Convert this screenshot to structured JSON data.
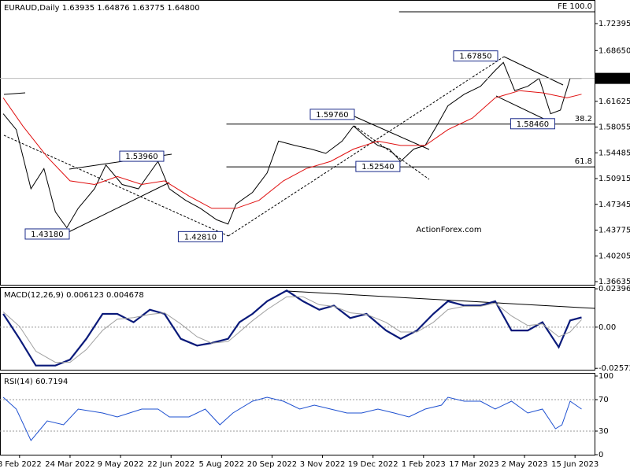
{
  "chart_data": [
    {
      "type": "line",
      "title": "EURAUD,Daily  1.63935 1.64876 1.63775 1.64800",
      "watermark": "ActionForex.com",
      "xlim": [
        0,
        365
      ],
      "ylim": [
        1.362,
        1.7566
      ],
      "grid": false,
      "yticks": [
        1.72395,
        {
          "value": 1.6865,
          "label": "1.68650"
        },
        1.61625,
        1.58055,
        1.54485,
        1.50915,
        1.47345,
        1.43775,
        1.40205,
        1.36635
      ],
      "last_price": {
        "value": 1.648,
        "label": "1.64800"
      },
      "series": [
        {
          "name": "EURAUD",
          "color": "#000000",
          "x": [
            2,
            10,
            19,
            27,
            34,
            41,
            48,
            58,
            65,
            75,
            85,
            97,
            104,
            114,
            123,
            133,
            140,
            145,
            155,
            164,
            171,
            181,
            191,
            200,
            210,
            217,
            225,
            232,
            239,
            246,
            254,
            261,
            268,
            275,
            285,
            295,
            304,
            309,
            316,
            324,
            331,
            338,
            344,
            350,
            357
          ],
          "values": [
            1.599,
            1.577,
            1.495,
            1.523,
            1.463,
            1.441,
            1.468,
            1.495,
            1.528,
            1.501,
            1.495,
            1.533,
            1.495,
            1.479,
            1.468,
            1.452,
            1.446,
            1.474,
            1.49,
            1.517,
            1.561,
            1.555,
            1.55,
            1.544,
            1.561,
            1.582,
            1.566,
            1.555,
            1.55,
            1.533,
            1.55,
            1.555,
            1.582,
            1.61,
            1.626,
            1.637,
            1.659,
            1.67,
            1.631,
            1.637,
            1.648,
            1.599,
            1.604,
            1.648,
            1.648
          ]
        },
        {
          "name": "MA",
          "color": "#e01010",
          "x": [
            2,
            14,
            29,
            43,
            58,
            72,
            87,
            101,
            116,
            130,
            145,
            159,
            174,
            188,
            203,
            217,
            232,
            246,
            261,
            275,
            290,
            304,
            319,
            333,
            348,
            357
          ],
          "values": [
            1.621,
            1.582,
            1.539,
            1.506,
            1.501,
            1.512,
            1.501,
            1.506,
            1.485,
            1.468,
            1.468,
            1.479,
            1.506,
            1.523,
            1.533,
            1.55,
            1.561,
            1.555,
            1.555,
            1.577,
            1.593,
            1.621,
            1.631,
            1.628,
            1.621,
            1.626
          ]
        }
      ],
      "annotations": [
        {
          "label": "1.43180",
          "value": 1.4318,
          "x": 29
        },
        {
          "label": "1.53960",
          "value": 1.5396,
          "x": 87
        },
        {
          "label": "1.42810",
          "value": 1.4281,
          "x": 123
        },
        {
          "label": "1.59760",
          "value": 1.5976,
          "x": 204
        },
        {
          "label": "1.52540",
          "value": 1.5254,
          "x": 232
        },
        {
          "label": "1.67850",
          "value": 1.6785,
          "x": 292
        },
        {
          "label": "1.58460",
          "value": 1.5846,
          "x": 327
        }
      ],
      "levels": [
        {
          "label": "FE 100.0",
          "value": 1.7403,
          "from": 245
        },
        {
          "label": "38.2",
          "value": 1.5846,
          "from": 139
        },
        {
          "label": "61.8",
          "value": 1.5254,
          "from": 139
        }
      ]
    },
    {
      "type": "line",
      "title": "MACD(12,26,9) 0.006123 0.004678",
      "xlim": [
        0,
        365
      ],
      "ylim": [
        -0.0266,
        0.025
      ],
      "grid": true,
      "yticks": [
        0.023963,
        {
          "value": 0,
          "label": "0.00"
        },
        -0.025726
      ],
      "series": [
        {
          "name": "MACD",
          "color": "#0a1a7a",
          "x": [
            2,
            12,
            22,
            34,
            43,
            53,
            63,
            72,
            82,
            92,
            101,
            111,
            121,
            130,
            140,
            147,
            155,
            164,
            176,
            186,
            196,
            205,
            215,
            225,
            237,
            246,
            256,
            266,
            275,
            285,
            295,
            304,
            314,
            324,
            333,
            343,
            350,
            357
          ],
          "values": [
            0.0083,
            -0.0073,
            -0.024,
            -0.024,
            -0.0203,
            -0.0073,
            0.0083,
            0.0083,
            0.0031,
            0.0109,
            0.0083,
            -0.0073,
            -0.0115,
            -0.0099,
            -0.0073,
            0.0031,
            0.0083,
            0.0162,
            0.0229,
            0.0162,
            0.0109,
            0.0135,
            0.0057,
            0.0083,
            -0.0021,
            -0.0073,
            -0.0021,
            0.0083,
            0.0162,
            0.0135,
            0.0135,
            0.0162,
            -0.0021,
            -0.0021,
            0.0031,
            -0.0125,
            0.0042,
            0.0061
          ]
        },
        {
          "name": "Signal",
          "color": "#a0a0a0",
          "x": [
            2,
            12,
            22,
            34,
            43,
            53,
            63,
            72,
            82,
            92,
            101,
            111,
            121,
            130,
            140,
            147,
            155,
            164,
            176,
            186,
            196,
            205,
            215,
            225,
            237,
            246,
            256,
            266,
            275,
            285,
            295,
            304,
            314,
            324,
            333,
            343,
            350,
            357
          ],
          "values": [
            0.0095,
            0.0005,
            -0.015,
            -0.022,
            -0.022,
            -0.014,
            -0.002,
            0.005,
            0.006,
            0.008,
            0.009,
            0.002,
            -0.006,
            -0.01,
            -0.009,
            -0.003,
            0.004,
            0.011,
            0.019,
            0.019,
            0.014,
            0.013,
            0.009,
            0.008,
            0.003,
            -0.003,
            -0.003,
            0.003,
            0.011,
            0.013,
            0.013,
            0.015,
            0.007,
            0.001,
            0.002,
            -0.006,
            -0.003,
            0.0047
          ]
        }
      ]
    },
    {
      "type": "line",
      "title": "RSI(14) 60.7194",
      "xlim": [
        0,
        365
      ],
      "ylim": [
        0,
        103
      ],
      "grid": true,
      "yticks": [
        100,
        70,
        30,
        0
      ],
      "xticks": [
        {
          "value": 12,
          "label": "8 Feb 2022"
        },
        {
          "value": 43,
          "label": "24 Mar 2022"
        },
        {
          "value": 74,
          "label": "9 May 2022"
        },
        {
          "value": 105,
          "label": "22 Jun 2022"
        },
        {
          "value": 136,
          "label": "5 Aug 2022"
        },
        {
          "value": 167,
          "label": "20 Sep 2022"
        },
        {
          "value": 198,
          "label": "3 Nov 2022"
        },
        {
          "value": 229,
          "label": "19 Dec 2022"
        },
        {
          "value": 260,
          "label": "1 Feb 2023"
        },
        {
          "value": 291,
          "label": "17 Mar 2023"
        },
        {
          "value": 322,
          "label": "2 May 2023"
        },
        {
          "value": 353,
          "label": "15 Jun 2023"
        }
      ],
      "series": [
        {
          "name": "RSI",
          "color": "#1e50d0",
          "x": [
            2,
            10,
            19,
            29,
            39,
            48,
            63,
            72,
            87,
            97,
            104,
            116,
            126,
            135,
            143,
            155,
            164,
            174,
            184,
            193,
            203,
            213,
            222,
            232,
            242,
            251,
            261,
            271,
            275,
            285,
            295,
            304,
            314,
            324,
            333,
            341,
            345,
            350,
            357
          ],
          "values": [
            73,
            58,
            18,
            43,
            38,
            58,
            53,
            48,
            58,
            58,
            48,
            48,
            58,
            38,
            53,
            68,
            73,
            68,
            58,
            63,
            58,
            53,
            53,
            58,
            53,
            48,
            58,
            63,
            73,
            68,
            68,
            58,
            68,
            53,
            58,
            33,
            38,
            68,
            58
          ]
        }
      ]
    }
  ]
}
